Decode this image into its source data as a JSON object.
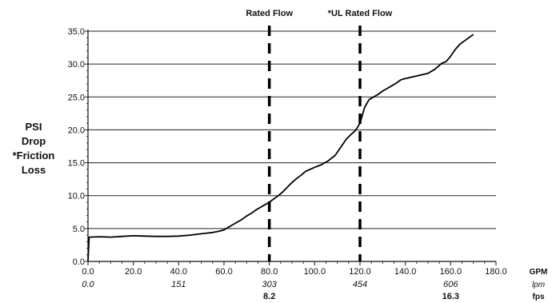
{
  "chart_data": {
    "type": "line",
    "title": "",
    "ylabel_lines": [
      "PSI",
      "Drop",
      "*Friction",
      "Loss"
    ],
    "ylim": [
      0,
      35
    ],
    "yticks": [
      "0.0",
      "5.0",
      "10.0",
      "15.0",
      "20.0",
      "25.0",
      "30.0",
      "35.0"
    ],
    "xlim": [
      0,
      180
    ],
    "xticks_gpm": [
      "0.0",
      "20.0",
      "40.0",
      "60.0",
      "80.0",
      "100.0",
      "120.0",
      "140.0",
      "160.0",
      "180.0"
    ],
    "xticks_lpm": [
      {
        "gpm": 0,
        "label": "0.0"
      },
      {
        "gpm": 40,
        "label": "151"
      },
      {
        "gpm": 80,
        "label": "303"
      },
      {
        "gpm": 120,
        "label": "454"
      },
      {
        "gpm": 160,
        "label": "606"
      }
    ],
    "xticks_fps": [
      {
        "gpm": 80,
        "label": "8.2"
      },
      {
        "gpm": 160,
        "label": "16.3"
      }
    ],
    "unit_labels": {
      "gpm": "GPM",
      "lpm": "lpm",
      "fps": "fps"
    },
    "grid": true,
    "annotations": [
      {
        "label": "Rated Flow",
        "x": 80
      },
      {
        "label": "*UL Rated Flow",
        "x": 120
      }
    ],
    "series": [
      {
        "x": [
          0,
          0.5,
          5,
          10,
          15,
          20,
          25,
          30,
          35,
          40,
          45,
          50,
          55,
          58,
          60,
          62,
          64,
          66,
          68,
          70,
          72,
          74,
          76,
          78,
          80,
          82,
          84,
          86,
          88,
          90,
          92,
          94,
          96,
          98,
          100,
          103,
          106,
          109,
          112,
          114,
          116,
          118,
          120,
          122,
          124,
          126,
          128,
          130,
          132,
          134,
          136,
          138,
          140,
          145,
          150,
          153,
          155,
          156,
          158,
          160,
          162,
          164,
          166,
          168,
          170
        ],
        "y": [
          0.1,
          3.7,
          3.75,
          3.7,
          3.8,
          3.9,
          3.85,
          3.8,
          3.8,
          3.85,
          4.0,
          4.2,
          4.4,
          4.6,
          4.8,
          5.2,
          5.6,
          6.0,
          6.4,
          6.9,
          7.3,
          7.8,
          8.2,
          8.6,
          9.0,
          9.5,
          10.0,
          10.6,
          11.3,
          12.0,
          12.6,
          13.1,
          13.7,
          14.0,
          14.3,
          14.7,
          15.3,
          16.1,
          17.6,
          18.6,
          19.3,
          19.9,
          21.0,
          23.4,
          24.6,
          25.0,
          25.4,
          25.9,
          26.3,
          26.7,
          27.1,
          27.6,
          27.8,
          28.2,
          28.6,
          29.2,
          29.8,
          30.1,
          30.4,
          31.2,
          32.2,
          33.0,
          33.5,
          34.0,
          34.5
        ]
      }
    ]
  }
}
